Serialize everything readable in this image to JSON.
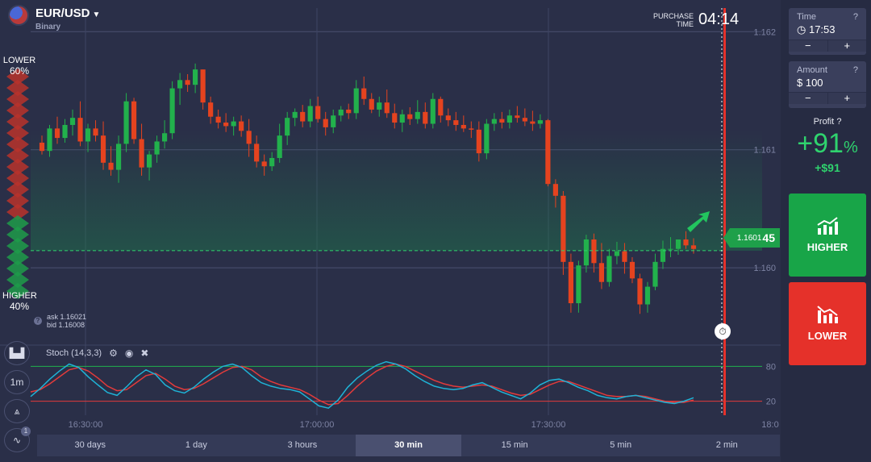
{
  "asset": {
    "pair": "EUR/USD",
    "type": "Binary"
  },
  "purchase_time": {
    "label_line1": "PURCHASE",
    "label_line2": "TIME",
    "value": "04:14"
  },
  "sentiment": {
    "lower_label": "LOWER",
    "lower_pct": "60%",
    "higher_label": "HIGHER",
    "higher_pct": "40%"
  },
  "quotes": {
    "ask": "ask 1.16021",
    "bid": "bid 1.16008"
  },
  "current_price": {
    "prefix": "1.1601",
    "suffix": "45"
  },
  "price_axis": [
    "1.162",
    "1.161",
    "1.160"
  ],
  "time_axis": [
    "16:30:00",
    "17:00:00",
    "17:30:00",
    "18:0"
  ],
  "stoch": {
    "label": "Stoch (14,3,3)",
    "level_high": "80",
    "level_low": "20"
  },
  "tools": {
    "interval": "1m",
    "indicator_count": "1"
  },
  "timeframes": [
    "30 days",
    "1 day",
    "3 hours",
    "30 min",
    "15 min",
    "5 min",
    "2 min"
  ],
  "active_timeframe": "30 min",
  "trade_panel": {
    "time_label": "Time",
    "time_value": "17:53",
    "amount_label": "Amount",
    "amount_value": "$ 100",
    "minus": "−",
    "plus": "+",
    "profit_label": "Profit",
    "profit_pct": "+91",
    "profit_pct_sign": "%",
    "profit_amount": "+$91",
    "higher_label": "HIGHER",
    "lower_label": "LOWER"
  },
  "colors": {
    "up": "#22b14c",
    "down": "#e5431f",
    "background": "#2a2f48",
    "stoch_k": "#1fb3d6",
    "stoch_d": "#e33b3b"
  },
  "chart_data": {
    "type": "candlestick",
    "instrument": "EUR/USD",
    "ylim": [
      1.1594,
      1.1622
    ],
    "x_ticks": [
      "16:30:00",
      "17:00:00",
      "17:30:00",
      "18:0"
    ],
    "y_ticks": [
      1.162,
      1.161,
      1.16
    ],
    "current_price": 1.160145,
    "candles": [
      {
        "o": 1.16106,
        "h": 1.16112,
        "l": 1.16096,
        "c": 1.16099
      },
      {
        "o": 1.16099,
        "h": 1.16121,
        "l": 1.16094,
        "c": 1.16118
      },
      {
        "o": 1.16118,
        "h": 1.16128,
        "l": 1.16105,
        "c": 1.1611
      },
      {
        "o": 1.1611,
        "h": 1.16126,
        "l": 1.16106,
        "c": 1.16121
      },
      {
        "o": 1.16121,
        "h": 1.16134,
        "l": 1.16112,
        "c": 1.16127
      },
      {
        "o": 1.16127,
        "h": 1.16141,
        "l": 1.16103,
        "c": 1.16107
      },
      {
        "o": 1.16107,
        "h": 1.16122,
        "l": 1.16098,
        "c": 1.16118
      },
      {
        "o": 1.16118,
        "h": 1.16125,
        "l": 1.16107,
        "c": 1.16112
      },
      {
        "o": 1.16112,
        "h": 1.16124,
        "l": 1.16083,
        "c": 1.16089
      },
      {
        "o": 1.16089,
        "h": 1.16103,
        "l": 1.16078,
        "c": 1.16083
      },
      {
        "o": 1.16083,
        "h": 1.16112,
        "l": 1.16072,
        "c": 1.16105
      },
      {
        "o": 1.16105,
        "h": 1.16148,
        "l": 1.16098,
        "c": 1.16141
      },
      {
        "o": 1.16141,
        "h": 1.16144,
        "l": 1.16105,
        "c": 1.16109
      },
      {
        "o": 1.16109,
        "h": 1.16122,
        "l": 1.16078,
        "c": 1.16085
      },
      {
        "o": 1.16085,
        "h": 1.16099,
        "l": 1.16074,
        "c": 1.16096
      },
      {
        "o": 1.16096,
        "h": 1.16112,
        "l": 1.16089,
        "c": 1.16107
      },
      {
        "o": 1.16107,
        "h": 1.16125,
        "l": 1.16101,
        "c": 1.16114
      },
      {
        "o": 1.16114,
        "h": 1.16158,
        "l": 1.16109,
        "c": 1.16152
      },
      {
        "o": 1.16152,
        "h": 1.16165,
        "l": 1.16138,
        "c": 1.16159
      },
      {
        "o": 1.16159,
        "h": 1.16164,
        "l": 1.16149,
        "c": 1.16155
      },
      {
        "o": 1.16155,
        "h": 1.16173,
        "l": 1.16148,
        "c": 1.16168
      },
      {
        "o": 1.16168,
        "h": 1.16168,
        "l": 1.16134,
        "c": 1.1614
      },
      {
        "o": 1.1614,
        "h": 1.16145,
        "l": 1.16122,
        "c": 1.16128
      },
      {
        "o": 1.16128,
        "h": 1.16134,
        "l": 1.16118,
        "c": 1.16123
      },
      {
        "o": 1.16123,
        "h": 1.16131,
        "l": 1.16115,
        "c": 1.1612
      },
      {
        "o": 1.1612,
        "h": 1.16128,
        "l": 1.16112,
        "c": 1.16124
      },
      {
        "o": 1.16124,
        "h": 1.16129,
        "l": 1.16111,
        "c": 1.16116
      },
      {
        "o": 1.16116,
        "h": 1.16126,
        "l": 1.16094,
        "c": 1.16105
      },
      {
        "o": 1.16105,
        "h": 1.16112,
        "l": 1.16085,
        "c": 1.1609
      },
      {
        "o": 1.1609,
        "h": 1.16096,
        "l": 1.16078,
        "c": 1.16086
      },
      {
        "o": 1.16086,
        "h": 1.16098,
        "l": 1.16082,
        "c": 1.16093
      },
      {
        "o": 1.16093,
        "h": 1.16122,
        "l": 1.16089,
        "c": 1.16112
      },
      {
        "o": 1.16112,
        "h": 1.16132,
        "l": 1.16104,
        "c": 1.16127
      },
      {
        "o": 1.16127,
        "h": 1.16135,
        "l": 1.1612,
        "c": 1.16132
      },
      {
        "o": 1.16132,
        "h": 1.16138,
        "l": 1.16119,
        "c": 1.16124
      },
      {
        "o": 1.16124,
        "h": 1.16143,
        "l": 1.16119,
        "c": 1.16137
      },
      {
        "o": 1.16137,
        "h": 1.16145,
        "l": 1.16123,
        "c": 1.16126
      },
      {
        "o": 1.16126,
        "h": 1.16132,
        "l": 1.16112,
        "c": 1.16119
      },
      {
        "o": 1.16119,
        "h": 1.16134,
        "l": 1.16114,
        "c": 1.16129
      },
      {
        "o": 1.16129,
        "h": 1.16137,
        "l": 1.16124,
        "c": 1.16134
      },
      {
        "o": 1.16134,
        "h": 1.16139,
        "l": 1.16126,
        "c": 1.16131
      },
      {
        "o": 1.16131,
        "h": 1.16159,
        "l": 1.16126,
        "c": 1.16152
      },
      {
        "o": 1.16152,
        "h": 1.16162,
        "l": 1.16138,
        "c": 1.16143
      },
      {
        "o": 1.16143,
        "h": 1.16148,
        "l": 1.16131,
        "c": 1.16134
      },
      {
        "o": 1.16134,
        "h": 1.16145,
        "l": 1.16128,
        "c": 1.1614
      },
      {
        "o": 1.1614,
        "h": 1.16151,
        "l": 1.16127,
        "c": 1.16131
      },
      {
        "o": 1.16131,
        "h": 1.16139,
        "l": 1.16118,
        "c": 1.16123
      },
      {
        "o": 1.16123,
        "h": 1.16134,
        "l": 1.16115,
        "c": 1.1613
      },
      {
        "o": 1.1613,
        "h": 1.16136,
        "l": 1.16121,
        "c": 1.16126
      },
      {
        "o": 1.16126,
        "h": 1.16142,
        "l": 1.16122,
        "c": 1.16132
      },
      {
        "o": 1.16132,
        "h": 1.1614,
        "l": 1.16118,
        "c": 1.16122
      },
      {
        "o": 1.16122,
        "h": 1.16148,
        "l": 1.16118,
        "c": 1.16143
      },
      {
        "o": 1.16143,
        "h": 1.16145,
        "l": 1.16123,
        "c": 1.16129
      },
      {
        "o": 1.16129,
        "h": 1.16135,
        "l": 1.1612,
        "c": 1.16125
      },
      {
        "o": 1.16125,
        "h": 1.16132,
        "l": 1.16116,
        "c": 1.16121
      },
      {
        "o": 1.16121,
        "h": 1.16129,
        "l": 1.16115,
        "c": 1.16118
      },
      {
        "o": 1.16118,
        "h": 1.16124,
        "l": 1.1611,
        "c": 1.16117
      },
      {
        "o": 1.16117,
        "h": 1.16124,
        "l": 1.1609,
        "c": 1.16097
      },
      {
        "o": 1.16097,
        "h": 1.16126,
        "l": 1.16092,
        "c": 1.16122
      },
      {
        "o": 1.16122,
        "h": 1.16131,
        "l": 1.16116,
        "c": 1.16126
      },
      {
        "o": 1.16126,
        "h": 1.16132,
        "l": 1.16118,
        "c": 1.16123
      },
      {
        "o": 1.16123,
        "h": 1.16134,
        "l": 1.16118,
        "c": 1.16129
      },
      {
        "o": 1.16129,
        "h": 1.16137,
        "l": 1.16123,
        "c": 1.16127
      },
      {
        "o": 1.16127,
        "h": 1.16135,
        "l": 1.1612,
        "c": 1.16124
      },
      {
        "o": 1.16124,
        "h": 1.16133,
        "l": 1.16116,
        "c": 1.16122
      },
      {
        "o": 1.16122,
        "h": 1.1613,
        "l": 1.16118,
        "c": 1.16125
      },
      {
        "o": 1.16125,
        "h": 1.16126,
        "l": 1.16069,
        "c": 1.16071
      },
      {
        "o": 1.16071,
        "h": 1.16075,
        "l": 1.16051,
        "c": 1.16061
      },
      {
        "o": 1.16061,
        "h": 1.16065,
        "l": 1.15994,
        "c": 1.16005
      },
      {
        "o": 1.16005,
        "h": 1.16012,
        "l": 1.15962,
        "c": 1.1597
      },
      {
        "o": 1.1597,
        "h": 1.16006,
        "l": 1.15962,
        "c": 1.16002
      },
      {
        "o": 1.16002,
        "h": 1.16028,
        "l": 1.15996,
        "c": 1.16024
      },
      {
        "o": 1.16024,
        "h": 1.16029,
        "l": 1.15996,
        "c": 1.16004
      },
      {
        "o": 1.16004,
        "h": 1.16021,
        "l": 1.15982,
        "c": 1.15988
      },
      {
        "o": 1.15988,
        "h": 1.16016,
        "l": 1.15984,
        "c": 1.1601
      },
      {
        "o": 1.1601,
        "h": 1.16022,
        "l": 1.16003,
        "c": 1.16014
      },
      {
        "o": 1.16014,
        "h": 1.16021,
        "l": 1.15995,
        "c": 1.16005
      },
      {
        "o": 1.16005,
        "h": 1.16009,
        "l": 1.15987,
        "c": 1.15991
      },
      {
        "o": 1.15991,
        "h": 1.15995,
        "l": 1.15961,
        "c": 1.15969
      },
      {
        "o": 1.15969,
        "h": 1.15988,
        "l": 1.15962,
        "c": 1.15984
      },
      {
        "o": 1.15984,
        "h": 1.16012,
        "l": 1.15981,
        "c": 1.16005
      },
      {
        "o": 1.16005,
        "h": 1.16023,
        "l": 1.15999,
        "c": 1.16016
      },
      {
        "o": 1.16016,
        "h": 1.16026,
        "l": 1.16009,
        "c": 1.16016
      },
      {
        "o": 1.16016,
        "h": 1.16023,
        "l": 1.16011,
        "c": 1.16024
      },
      {
        "o": 1.16024,
        "h": 1.16031,
        "l": 1.16016,
        "c": 1.16019
      },
      {
        "o": 1.16019,
        "h": 1.16025,
        "l": 1.16012,
        "c": 1.16016
      }
    ],
    "stoch_range": [
      0,
      100
    ],
    "stoch_levels": [
      80,
      20
    ],
    "stoch_k": [
      28,
      42,
      58,
      72,
      84,
      78,
      62,
      48,
      35,
      30,
      45,
      62,
      74,
      66,
      48,
      38,
      34,
      44,
      58,
      70,
      80,
      84,
      78,
      64,
      52,
      46,
      42,
      40,
      36,
      24,
      12,
      8,
      22,
      44,
      60,
      72,
      82,
      88,
      84,
      76,
      64,
      54,
      46,
      42,
      40,
      42,
      48,
      52,
      44,
      36,
      30,
      24,
      34,
      48,
      56,
      58,
      52,
      44,
      38,
      30,
      26,
      24,
      28,
      30,
      26,
      22,
      18,
      16,
      20,
      26
    ],
    "stoch_d": [
      36,
      40,
      50,
      62,
      74,
      78,
      72,
      60,
      46,
      38,
      40,
      52,
      64,
      68,
      58,
      46,
      40,
      42,
      50,
      60,
      70,
      78,
      80,
      74,
      62,
      54,
      48,
      44,
      40,
      32,
      22,
      14,
      16,
      30,
      46,
      60,
      72,
      80,
      84,
      80,
      72,
      64,
      56,
      50,
      46,
      44,
      46,
      48,
      46,
      40,
      34,
      30,
      32,
      40,
      48,
      54,
      54,
      48,
      42,
      36,
      30,
      28,
      28,
      30,
      28,
      24,
      20,
      18,
      18,
      22
    ]
  }
}
